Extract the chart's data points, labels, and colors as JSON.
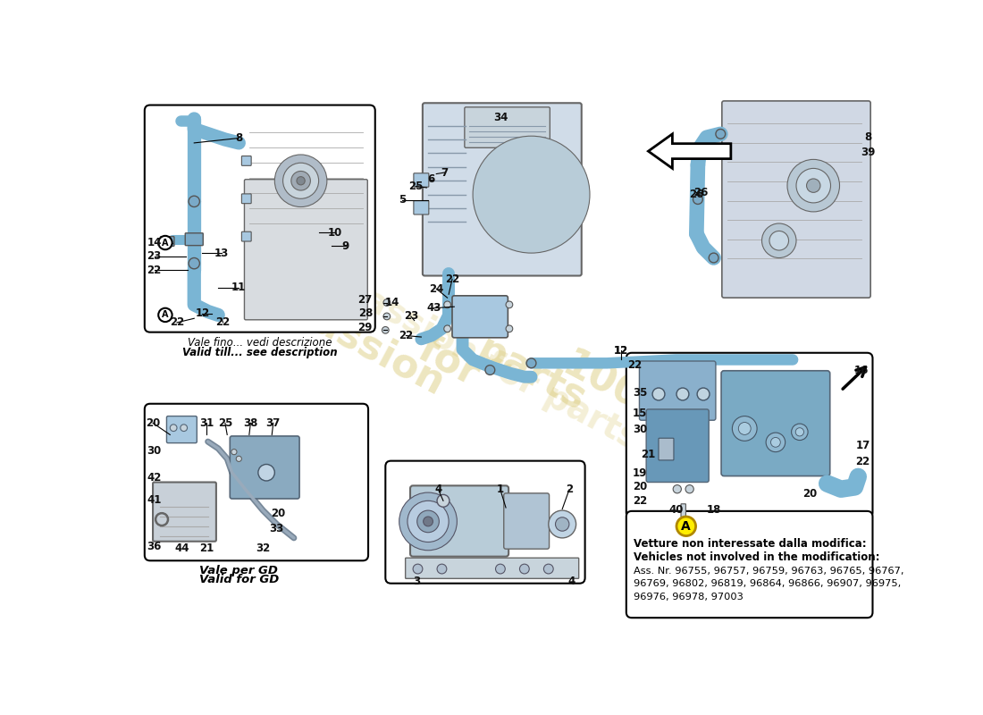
{
  "bg_color": "#ffffff",
  "hose_color": "#7ab5d4",
  "hose_color_dark": "#5a9ab9",
  "component_color": "#a8c8e0",
  "component_dark": "#7aaac8",
  "metal_color": "#c8d4dc",
  "metal_dark": "#a0b0bc",
  "line_color": "#444444",
  "label_color": "#111111",
  "watermark_color": "#d4c060",
  "info_box": {
    "line1": "Vetture non interessate dalla modifica:",
    "line2": "Vehicles not involved in the modification:",
    "line3": "Ass. Nr. 96755, 96757, 96759, 96763, 96765, 96767,",
    "line4": "96769, 96802, 96819, 96864, 96866, 96907, 96975,",
    "line5": "96976, 96978, 97003"
  },
  "top_left_caption_it": "Vale fino... vedi descrizione",
  "top_left_caption_en": "Valid till... see description",
  "bottom_left_caption_it": "Vale per GD",
  "bottom_left_caption_en": "Valid for GD"
}
